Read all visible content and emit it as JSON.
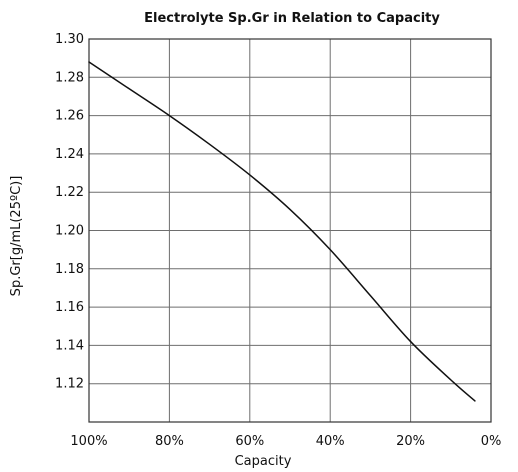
{
  "chart_data": {
    "type": "line",
    "title": "Electrolyte Sp.Gr in Relation to Capacity",
    "xlabel": "Capacity",
    "ylabel": "Sp.Gr[g/mL(25ºC)]",
    "x_reversed": true,
    "xlim": [
      100,
      0
    ],
    "ylim": [
      1.1,
      1.3
    ],
    "x_ticks": [
      100,
      80,
      60,
      40,
      20,
      0
    ],
    "x_tick_labels": [
      "100%",
      "80%",
      "60%",
      "40%",
      "20%",
      "0%"
    ],
    "y_ticks": [
      1.12,
      1.14,
      1.16,
      1.18,
      1.2,
      1.22,
      1.24,
      1.26,
      1.28,
      1.3
    ],
    "y_tick_labels": [
      "1.12",
      "1.14",
      "1.16",
      "1.18",
      "1.20",
      "1.22",
      "1.24",
      "1.26",
      "1.28",
      "1.30"
    ],
    "grid": true,
    "series": [
      {
        "x": [
          100,
          90,
          80,
          70,
          60,
          50,
          40,
          30,
          20,
          10,
          4
        ],
        "y": [
          1.288,
          1.274,
          1.26,
          1.245,
          1.229,
          1.211,
          1.19,
          1.166,
          1.142,
          1.122,
          1.111
        ]
      }
    ]
  }
}
